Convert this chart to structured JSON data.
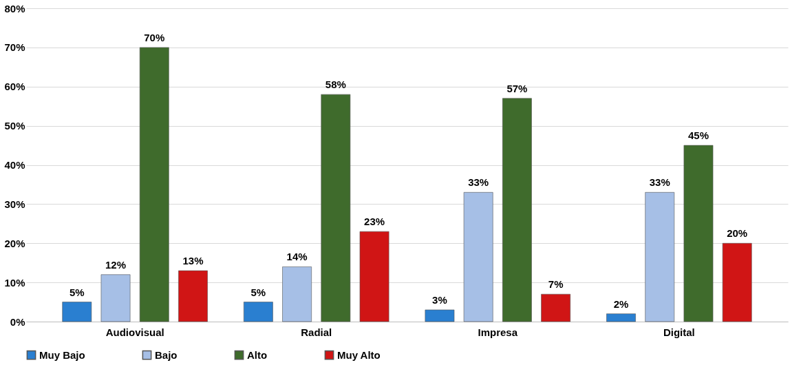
{
  "chart_data": {
    "type": "bar",
    "categories": [
      "Audiovisual",
      "Radial",
      "Impresa",
      "Digital"
    ],
    "series": [
      {
        "name": "Muy Bajo",
        "color": "#2a7fd0",
        "values": [
          5,
          5,
          3,
          2
        ],
        "value_labels": [
          "5%",
          "5%",
          "3%",
          "2%"
        ]
      },
      {
        "name": "Bajo",
        "color": "#a6bfe6",
        "values": [
          12,
          14,
          33,
          33
        ],
        "value_labels": [
          "12%",
          "14%",
          "33%",
          "33%"
        ]
      },
      {
        "name": "Alto",
        "color": "#3f6b2c",
        "values": [
          70,
          58,
          57,
          45
        ],
        "value_labels": [
          "70%",
          "58%",
          "57%",
          "45%"
        ]
      },
      {
        "name": "Muy Alto",
        "color": "#d01515",
        "values": [
          13,
          23,
          7,
          20
        ],
        "value_labels": [
          "13%",
          "23%",
          "7%",
          "20%"
        ]
      }
    ],
    "ylim": [
      0,
      80
    ],
    "yticks": [
      {
        "value": 0,
        "label": "0%"
      },
      {
        "value": 10,
        "label": "10%"
      },
      {
        "value": 20,
        "label": "20%"
      },
      {
        "value": 30,
        "label": "30%"
      },
      {
        "value": 40,
        "label": "40%"
      },
      {
        "value": 50,
        "label": "50%"
      },
      {
        "value": 60,
        "label": "60%"
      },
      {
        "value": 70,
        "label": "70%"
      },
      {
        "value": 80,
        "label": "80%"
      }
    ],
    "grid": "y",
    "legend": "bottom"
  }
}
